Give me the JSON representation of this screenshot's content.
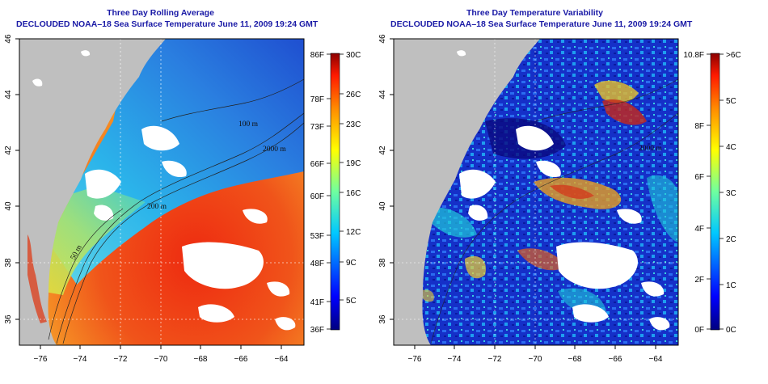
{
  "left_panel": {
    "title1": "Three Day Rolling Average",
    "title2": "DECLOUDED NOAA–18 Sea Surface Temperature June 11, 2009 19:24 GMT",
    "x_ticks": [
      "−76",
      "−74",
      "−72",
      "−70",
      "−68",
      "−66",
      "−64"
    ],
    "y_ticks": [
      "46",
      "44",
      "42",
      "40",
      "38",
      "36"
    ],
    "contours": [
      "100 m",
      "2000 m",
      "200 m",
      "50 m"
    ],
    "colorbar": {
      "f_labels": [
        "86F",
        "78F",
        "73F",
        "66F",
        "60F",
        "53F",
        "48F",
        "41F",
        "36F"
      ],
      "c_labels": [
        "30C",
        "26C",
        "23C",
        "19C",
        "16C",
        "12C",
        "9C",
        "5C"
      ]
    }
  },
  "right_panel": {
    "title1": "Three Day Temperature Variability",
    "title2": "DECLOUDED NOAA–18 Sea Surface Temperature June 11, 2009 19:24 GMT",
    "x_ticks": [
      "−76",
      "−74",
      "−72",
      "−70",
      "−68",
      "−66",
      "−64"
    ],
    "y_ticks": [
      "46",
      "44",
      "42",
      "40",
      "38",
      "36"
    ],
    "contours": [
      "2000 m"
    ],
    "colorbar": {
      "f_labels": [
        "10.8F",
        "8F",
        "6F",
        "4F",
        "2F",
        "0F"
      ],
      "c_labels": [
        ">6C",
        "5C",
        "4C",
        "3C",
        "2C",
        "1C",
        "0C"
      ]
    }
  },
  "colors": {
    "title": "#1a1aa6",
    "land": "#bfbfbf",
    "cloud": "#ffffff"
  }
}
